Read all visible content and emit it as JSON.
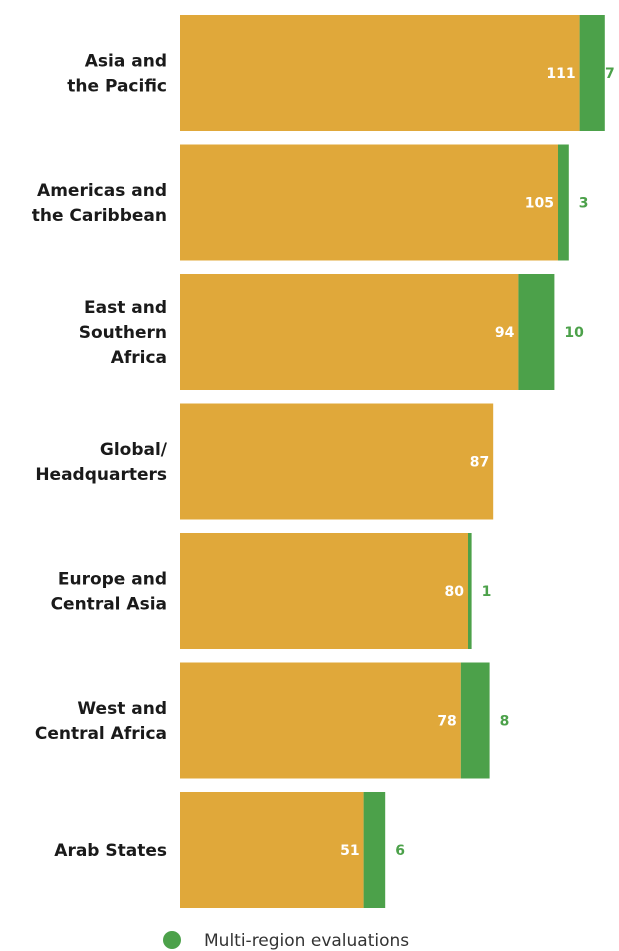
{
  "chart_data": {
    "type": "bar",
    "orientation": "horizontal",
    "stacked": true,
    "categories": [
      [
        "Asia and",
        "the Pacific"
      ],
      [
        "Americas and",
        "the Caribbean"
      ],
      [
        "East and",
        "Southern",
        "Africa"
      ],
      [
        "Global/",
        "Headquarters"
      ],
      [
        "Europe and",
        "Central Asia"
      ],
      [
        "West and",
        "Central Africa"
      ],
      [
        "Arab States"
      ]
    ],
    "series": [
      {
        "key": "single",
        "values": [
          111,
          105,
          94,
          87,
          80,
          78,
          51
        ],
        "color": "#E0A83A"
      },
      {
        "key": "multi",
        "name": "Multi-region evaluations",
        "values": [
          7,
          3,
          10,
          0,
          1,
          8,
          6
        ],
        "color": "#4CA14A"
      }
    ],
    "xlim": [
      0,
      120
    ],
    "grid": false,
    "legend_placement": "bottom"
  },
  "legend": {
    "label": "Multi-region evaluations",
    "color": "#4CA14A"
  }
}
